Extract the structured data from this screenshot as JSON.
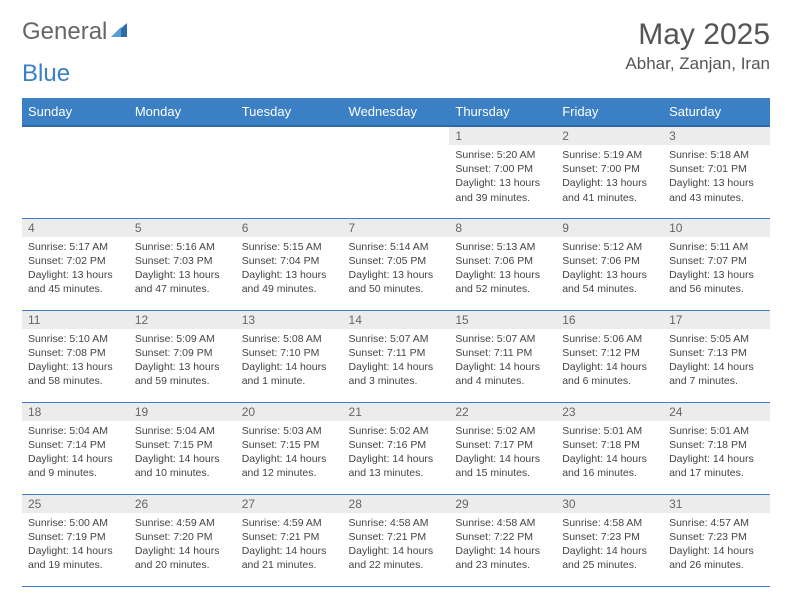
{
  "brand": {
    "general": "General",
    "blue": "Blue"
  },
  "title": {
    "month_year": "May 2025",
    "location": "Abhar, Zanjan, Iran"
  },
  "day_headers": [
    "Sunday",
    "Monday",
    "Tuesday",
    "Wednesday",
    "Thursday",
    "Friday",
    "Saturday"
  ],
  "colors": {
    "header_bg": "#3b7fc4",
    "header_border": "#2e6aa8",
    "daynum_bg": "#ececec",
    "row_border": "#3b7fc4",
    "text": "#444",
    "title_text": "#555"
  },
  "typography": {
    "month_year_fontsize": 30,
    "location_fontsize": 17,
    "header_fontsize": 13,
    "daynum_fontsize": 12,
    "body_fontsize": 10.5
  },
  "weeks": [
    [
      {
        "num": "",
        "sunrise": "",
        "sunset": "",
        "daylight": ""
      },
      {
        "num": "",
        "sunrise": "",
        "sunset": "",
        "daylight": ""
      },
      {
        "num": "",
        "sunrise": "",
        "sunset": "",
        "daylight": ""
      },
      {
        "num": "",
        "sunrise": "",
        "sunset": "",
        "daylight": ""
      },
      {
        "num": "1",
        "sunrise": "Sunrise: 5:20 AM",
        "sunset": "Sunset: 7:00 PM",
        "daylight": "Daylight: 13 hours and 39 minutes."
      },
      {
        "num": "2",
        "sunrise": "Sunrise: 5:19 AM",
        "sunset": "Sunset: 7:00 PM",
        "daylight": "Daylight: 13 hours and 41 minutes."
      },
      {
        "num": "3",
        "sunrise": "Sunrise: 5:18 AM",
        "sunset": "Sunset: 7:01 PM",
        "daylight": "Daylight: 13 hours and 43 minutes."
      }
    ],
    [
      {
        "num": "4",
        "sunrise": "Sunrise: 5:17 AM",
        "sunset": "Sunset: 7:02 PM",
        "daylight": "Daylight: 13 hours and 45 minutes."
      },
      {
        "num": "5",
        "sunrise": "Sunrise: 5:16 AM",
        "sunset": "Sunset: 7:03 PM",
        "daylight": "Daylight: 13 hours and 47 minutes."
      },
      {
        "num": "6",
        "sunrise": "Sunrise: 5:15 AM",
        "sunset": "Sunset: 7:04 PM",
        "daylight": "Daylight: 13 hours and 49 minutes."
      },
      {
        "num": "7",
        "sunrise": "Sunrise: 5:14 AM",
        "sunset": "Sunset: 7:05 PM",
        "daylight": "Daylight: 13 hours and 50 minutes."
      },
      {
        "num": "8",
        "sunrise": "Sunrise: 5:13 AM",
        "sunset": "Sunset: 7:06 PM",
        "daylight": "Daylight: 13 hours and 52 minutes."
      },
      {
        "num": "9",
        "sunrise": "Sunrise: 5:12 AM",
        "sunset": "Sunset: 7:06 PM",
        "daylight": "Daylight: 13 hours and 54 minutes."
      },
      {
        "num": "10",
        "sunrise": "Sunrise: 5:11 AM",
        "sunset": "Sunset: 7:07 PM",
        "daylight": "Daylight: 13 hours and 56 minutes."
      }
    ],
    [
      {
        "num": "11",
        "sunrise": "Sunrise: 5:10 AM",
        "sunset": "Sunset: 7:08 PM",
        "daylight": "Daylight: 13 hours and 58 minutes."
      },
      {
        "num": "12",
        "sunrise": "Sunrise: 5:09 AM",
        "sunset": "Sunset: 7:09 PM",
        "daylight": "Daylight: 13 hours and 59 minutes."
      },
      {
        "num": "13",
        "sunrise": "Sunrise: 5:08 AM",
        "sunset": "Sunset: 7:10 PM",
        "daylight": "Daylight: 14 hours and 1 minute."
      },
      {
        "num": "14",
        "sunrise": "Sunrise: 5:07 AM",
        "sunset": "Sunset: 7:11 PM",
        "daylight": "Daylight: 14 hours and 3 minutes."
      },
      {
        "num": "15",
        "sunrise": "Sunrise: 5:07 AM",
        "sunset": "Sunset: 7:11 PM",
        "daylight": "Daylight: 14 hours and 4 minutes."
      },
      {
        "num": "16",
        "sunrise": "Sunrise: 5:06 AM",
        "sunset": "Sunset: 7:12 PM",
        "daylight": "Daylight: 14 hours and 6 minutes."
      },
      {
        "num": "17",
        "sunrise": "Sunrise: 5:05 AM",
        "sunset": "Sunset: 7:13 PM",
        "daylight": "Daylight: 14 hours and 7 minutes."
      }
    ],
    [
      {
        "num": "18",
        "sunrise": "Sunrise: 5:04 AM",
        "sunset": "Sunset: 7:14 PM",
        "daylight": "Daylight: 14 hours and 9 minutes."
      },
      {
        "num": "19",
        "sunrise": "Sunrise: 5:04 AM",
        "sunset": "Sunset: 7:15 PM",
        "daylight": "Daylight: 14 hours and 10 minutes."
      },
      {
        "num": "20",
        "sunrise": "Sunrise: 5:03 AM",
        "sunset": "Sunset: 7:15 PM",
        "daylight": "Daylight: 14 hours and 12 minutes."
      },
      {
        "num": "21",
        "sunrise": "Sunrise: 5:02 AM",
        "sunset": "Sunset: 7:16 PM",
        "daylight": "Daylight: 14 hours and 13 minutes."
      },
      {
        "num": "22",
        "sunrise": "Sunrise: 5:02 AM",
        "sunset": "Sunset: 7:17 PM",
        "daylight": "Daylight: 14 hours and 15 minutes."
      },
      {
        "num": "23",
        "sunrise": "Sunrise: 5:01 AM",
        "sunset": "Sunset: 7:18 PM",
        "daylight": "Daylight: 14 hours and 16 minutes."
      },
      {
        "num": "24",
        "sunrise": "Sunrise: 5:01 AM",
        "sunset": "Sunset: 7:18 PM",
        "daylight": "Daylight: 14 hours and 17 minutes."
      }
    ],
    [
      {
        "num": "25",
        "sunrise": "Sunrise: 5:00 AM",
        "sunset": "Sunset: 7:19 PM",
        "daylight": "Daylight: 14 hours and 19 minutes."
      },
      {
        "num": "26",
        "sunrise": "Sunrise: 4:59 AM",
        "sunset": "Sunset: 7:20 PM",
        "daylight": "Daylight: 14 hours and 20 minutes."
      },
      {
        "num": "27",
        "sunrise": "Sunrise: 4:59 AM",
        "sunset": "Sunset: 7:21 PM",
        "daylight": "Daylight: 14 hours and 21 minutes."
      },
      {
        "num": "28",
        "sunrise": "Sunrise: 4:58 AM",
        "sunset": "Sunset: 7:21 PM",
        "daylight": "Daylight: 14 hours and 22 minutes."
      },
      {
        "num": "29",
        "sunrise": "Sunrise: 4:58 AM",
        "sunset": "Sunset: 7:22 PM",
        "daylight": "Daylight: 14 hours and 23 minutes."
      },
      {
        "num": "30",
        "sunrise": "Sunrise: 4:58 AM",
        "sunset": "Sunset: 7:23 PM",
        "daylight": "Daylight: 14 hours and 25 minutes."
      },
      {
        "num": "31",
        "sunrise": "Sunrise: 4:57 AM",
        "sunset": "Sunset: 7:23 PM",
        "daylight": "Daylight: 14 hours and 26 minutes."
      }
    ]
  ]
}
